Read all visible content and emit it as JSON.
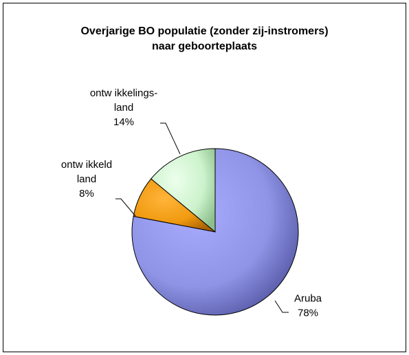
{
  "chart_data": {
    "type": "pie",
    "title_lines": [
      "Overjarige BO populatie (zonder zij-instromers)",
      "naar geboorteplaats"
    ],
    "categories": [
      "Aruba",
      "ontw ikkeld land",
      "ontw ikkelings-land"
    ],
    "values": [
      78,
      8,
      14
    ],
    "value_labels": [
      "78%",
      "8%",
      "14%"
    ],
    "label_lines": [
      [
        "Aruba",
        "78%"
      ],
      [
        "ontw ikkeld",
        "land",
        "8%"
      ],
      [
        "ontw ikkelings-",
        "land",
        "14%"
      ]
    ],
    "colors": [
      "#8f94e6",
      "#f0a020",
      "#ccf2cc"
    ],
    "start_angle_deg": 0,
    "legend": "none"
  }
}
